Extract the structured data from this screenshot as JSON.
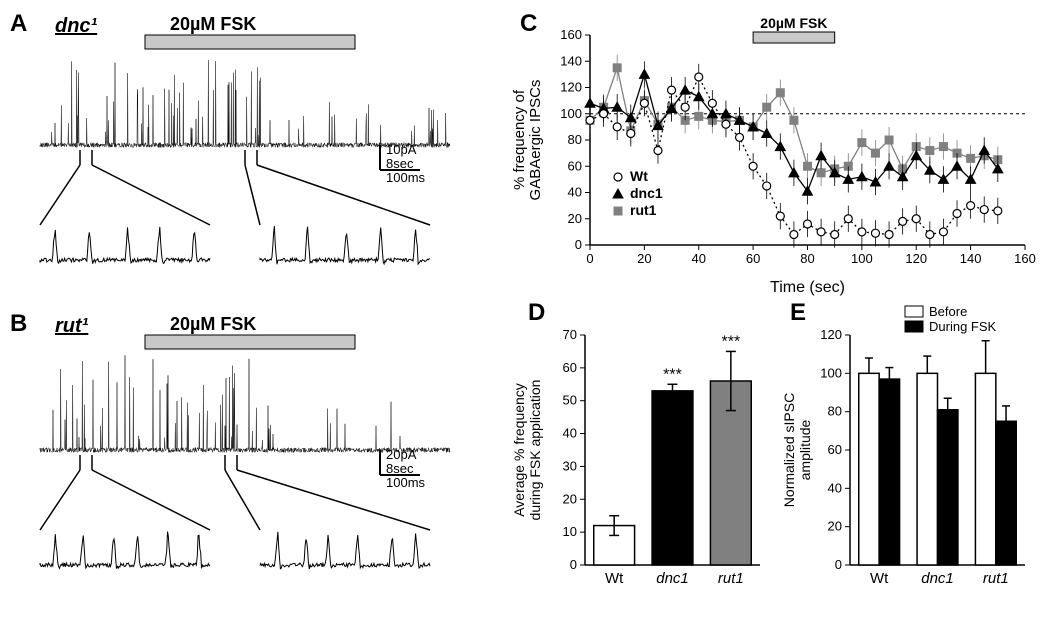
{
  "panelA": {
    "label": "A",
    "genotype": "dnc¹",
    "treatment": "20µM FSK",
    "scalebar": {
      "current": "10pA",
      "time1": "8sec",
      "time2": "100ms"
    },
    "trace_color": "#000000"
  },
  "panelB": {
    "label": "B",
    "genotype": "rut¹",
    "treatment": "20µM FSK",
    "scalebar": {
      "current": "20pA",
      "time1": "8sec",
      "time2": "100ms"
    },
    "trace_color": "#000000"
  },
  "panelC": {
    "label": "C",
    "treatment": "20µM FSK",
    "ylabel": "% frequency of\nGABAergic IPSCs",
    "xlabel": "Time (sec)",
    "ylim": [
      0,
      160
    ],
    "ytick_step": 20,
    "xlim": [
      0,
      160
    ],
    "xtick_step": 20,
    "fsk_bar_start": 60,
    "fsk_bar_end": 90,
    "legend": [
      {
        "name": "Wt",
        "marker": "circle-open",
        "color": "#000000",
        "fill": "#ffffff",
        "dash": "dot"
      },
      {
        "name": "dnc1",
        "marker": "triangle",
        "color": "#000000",
        "fill": "#000000",
        "dash": "solid"
      },
      {
        "name": "rut1",
        "marker": "square",
        "color": "#808080",
        "fill": "#808080",
        "dash": "solid"
      }
    ],
    "series": {
      "Wt": [
        [
          0,
          95
        ],
        [
          5,
          100
        ],
        [
          10,
          90
        ],
        [
          15,
          85
        ],
        [
          20,
          108
        ],
        [
          25,
          72
        ],
        [
          30,
          118
        ],
        [
          35,
          105
        ],
        [
          40,
          128
        ],
        [
          45,
          108
        ],
        [
          50,
          92
        ],
        [
          55,
          82
        ],
        [
          60,
          60
        ],
        [
          65,
          45
        ],
        [
          70,
          22
        ],
        [
          75,
          8
        ],
        [
          80,
          16
        ],
        [
          85,
          10
        ],
        [
          90,
          8
        ],
        [
          95,
          20
        ],
        [
          100,
          10
        ],
        [
          105,
          9
        ],
        [
          110,
          8
        ],
        [
          115,
          18
        ],
        [
          120,
          20
        ],
        [
          125,
          8
        ],
        [
          130,
          10
        ],
        [
          135,
          24
        ],
        [
          140,
          30
        ],
        [
          145,
          27
        ],
        [
          150,
          26
        ]
      ],
      "dnc1": [
        [
          0,
          108
        ],
        [
          5,
          104
        ],
        [
          10,
          105
        ],
        [
          15,
          97
        ],
        [
          20,
          130
        ],
        [
          25,
          91
        ],
        [
          30,
          104
        ],
        [
          35,
          118
        ],
        [
          40,
          113
        ],
        [
          45,
          100
        ],
        [
          50,
          100
        ],
        [
          55,
          95
        ],
        [
          60,
          90
        ],
        [
          65,
          85
        ],
        [
          70,
          75
        ],
        [
          75,
          55
        ],
        [
          80,
          41
        ],
        [
          85,
          68
        ],
        [
          90,
          55
        ],
        [
          95,
          50
        ],
        [
          100,
          52
        ],
        [
          105,
          48
        ],
        [
          110,
          60
        ],
        [
          115,
          52
        ],
        [
          120,
          68
        ],
        [
          125,
          57
        ],
        [
          130,
          50
        ],
        [
          135,
          60
        ],
        [
          140,
          50
        ],
        [
          145,
          72
        ],
        [
          150,
          58
        ]
      ],
      "rut1": [
        [
          0,
          95
        ],
        [
          5,
          105
        ],
        [
          10,
          135
        ],
        [
          15,
          87
        ],
        [
          20,
          110
        ],
        [
          25,
          92
        ],
        [
          30,
          105
        ],
        [
          35,
          95
        ],
        [
          40,
          98
        ],
        [
          45,
          95
        ],
        [
          50,
          94
        ],
        [
          55,
          95
        ],
        [
          60,
          90
        ],
        [
          65,
          105
        ],
        [
          70,
          116
        ],
        [
          75,
          95
        ],
        [
          80,
          60
        ],
        [
          85,
          55
        ],
        [
          90,
          58
        ],
        [
          95,
          60
        ],
        [
          100,
          78
        ],
        [
          105,
          70
        ],
        [
          110,
          80
        ],
        [
          115,
          58
        ],
        [
          120,
          75
        ],
        [
          125,
          72
        ],
        [
          130,
          75
        ],
        [
          135,
          70
        ],
        [
          140,
          66
        ],
        [
          145,
          68
        ],
        [
          150,
          65
        ]
      ]
    },
    "errorbar": 10
  },
  "panelD": {
    "label": "D",
    "ylabel": "Average % frequency\nduring FSK application",
    "ylim": [
      0,
      70
    ],
    "ytick_step": 10,
    "categories": [
      "Wt",
      "dnc1",
      "rut1"
    ],
    "values": [
      12,
      53,
      56
    ],
    "errors": [
      3,
      2,
      9
    ],
    "colors": [
      "#ffffff",
      "#000000",
      "#808080"
    ],
    "significance": [
      "",
      "***",
      "***"
    ],
    "bar_width": 0.7
  },
  "panelE": {
    "label": "E",
    "ylabel": "Normalized sIPSC\namplitude",
    "ylim": [
      0,
      120
    ],
    "ytick_step": 20,
    "categories": [
      "Wt",
      "dnc1",
      "rut1"
    ],
    "groups": [
      "Before",
      "During FSK"
    ],
    "group_colors": [
      "#ffffff",
      "#000000"
    ],
    "values": [
      [
        100,
        97
      ],
      [
        100,
        81
      ],
      [
        100,
        75
      ]
    ],
    "errors": [
      [
        8,
        6
      ],
      [
        9,
        6
      ],
      [
        17,
        8
      ]
    ],
    "bar_width": 0.35
  },
  "colors": {
    "background": "#ffffff",
    "axis": "#000000",
    "fsk_bar": "#c8c8c8",
    "grid_dash": "#000000"
  }
}
